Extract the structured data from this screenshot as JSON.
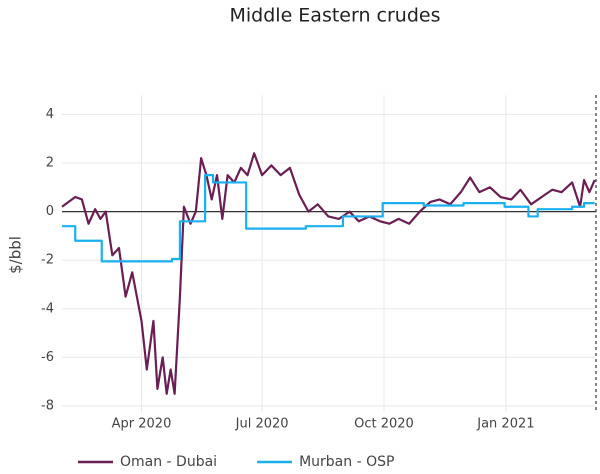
{
  "chart_data": {
    "type": "line",
    "title": "Middle Eastern crudes",
    "y_label": "$/bbl",
    "xlim": [
      "2020-02-01",
      "2021-03-10"
    ],
    "xticks": [
      {
        "value": "2020-04-01",
        "label": "Apr 2020"
      },
      {
        "value": "2020-07-01",
        "label": "Jul 2020"
      },
      {
        "value": "2020-10-01",
        "label": "Oct 2020"
      },
      {
        "value": "2021-01-01",
        "label": "Jan 2021"
      }
    ],
    "ylim": [
      -8.25,
      4.8
    ],
    "yticks": [
      -8,
      -6,
      -4,
      -2,
      0,
      2,
      4
    ],
    "grid": true,
    "zeroline": true,
    "legend": "bottom",
    "series": [
      {
        "name": "Oman - Dubai",
        "color": "#6b1e52",
        "x": [
          "2020-02-01",
          "2020-02-06",
          "2020-02-11",
          "2020-02-16",
          "2020-02-21",
          "2020-02-26",
          "2020-03-01",
          "2020-03-05",
          "2020-03-10",
          "2020-03-15",
          "2020-03-20",
          "2020-03-25",
          "2020-04-01",
          "2020-04-05",
          "2020-04-10",
          "2020-04-13",
          "2020-04-17",
          "2020-04-20",
          "2020-04-23",
          "2020-04-26",
          "2020-04-30",
          "2020-05-03",
          "2020-05-08",
          "2020-05-12",
          "2020-05-16",
          "2020-05-20",
          "2020-05-24",
          "2020-05-28",
          "2020-06-01",
          "2020-06-05",
          "2020-06-10",
          "2020-06-15",
          "2020-06-20",
          "2020-06-25",
          "2020-07-01",
          "2020-07-08",
          "2020-07-15",
          "2020-07-22",
          "2020-07-29",
          "2020-08-05",
          "2020-08-12",
          "2020-08-20",
          "2020-08-28",
          "2020-09-05",
          "2020-09-12",
          "2020-09-20",
          "2020-09-28",
          "2020-10-05",
          "2020-10-12",
          "2020-10-20",
          "2020-10-28",
          "2020-11-05",
          "2020-11-12",
          "2020-11-20",
          "2020-11-28",
          "2020-12-05",
          "2020-12-12",
          "2020-12-20",
          "2020-12-28",
          "2021-01-05",
          "2021-01-12",
          "2021-01-20",
          "2021-01-28",
          "2021-02-05",
          "2021-02-12",
          "2021-02-20",
          "2021-02-26",
          "2021-03-01",
          "2021-03-05",
          "2021-03-09"
        ],
        "values": [
          0.2,
          0.4,
          0.6,
          0.5,
          -0.5,
          0.1,
          -0.3,
          0,
          -1.8,
          -1.5,
          -3.5,
          -2.5,
          -4.5,
          -6.5,
          -4.5,
          -7.3,
          -6,
          -7.5,
          -6.5,
          -7.5,
          -3.5,
          0.2,
          -0.5,
          0,
          2.2,
          1.5,
          0.5,
          1.5,
          -0.3,
          1.5,
          1.2,
          1.8,
          1.5,
          2.4,
          1.5,
          1.9,
          1.5,
          1.8,
          0.7,
          0,
          0.3,
          -0.2,
          -0.3,
          0,
          -0.4,
          -0.2,
          -0.4,
          -0.5,
          -0.3,
          -0.5,
          0,
          0.4,
          0.5,
          0.3,
          0.8,
          1.4,
          0.8,
          1.0,
          0.6,
          0.5,
          0.9,
          0.3,
          0.6,
          0.9,
          0.8,
          1.2,
          0.2,
          1.3,
          0.8,
          1.3
        ]
      },
      {
        "name": "Murban - OSP",
        "color": "#1ab0ef",
        "x": [
          "2020-02-01",
          "2020-02-11",
          "2020-02-11",
          "2020-03-02",
          "2020-03-02",
          "2020-04-24",
          "2020-04-24",
          "2020-04-30",
          "2020-04-30",
          "2020-05-19",
          "2020-05-19",
          "2020-05-25",
          "2020-05-25",
          "2020-06-19",
          "2020-06-19",
          "2020-08-03",
          "2020-08-03",
          "2020-08-31",
          "2020-08-31",
          "2020-09-30",
          "2020-09-30",
          "2020-10-31",
          "2020-10-31",
          "2020-11-30",
          "2020-11-30",
          "2020-12-31",
          "2020-12-31",
          "2021-01-18",
          "2021-01-18",
          "2021-01-25",
          "2021-01-25",
          "2021-02-20",
          "2021-02-20",
          "2021-03-01",
          "2021-03-01",
          "2021-03-09"
        ],
        "values": [
          -0.6,
          -0.6,
          -1.2,
          -1.2,
          -2.05,
          -2.05,
          -1.95,
          -1.95,
          -0.4,
          -0.4,
          1.5,
          1.5,
          1.2,
          1.2,
          -0.7,
          -0.7,
          -0.6,
          -0.6,
          -0.2,
          -0.2,
          0.35,
          0.35,
          0.25,
          0.25,
          0.35,
          0.35,
          0.2,
          0.2,
          -0.2,
          -0.2,
          0.1,
          0.1,
          0.2,
          0.2,
          0.35,
          0.35
        ]
      }
    ]
  }
}
